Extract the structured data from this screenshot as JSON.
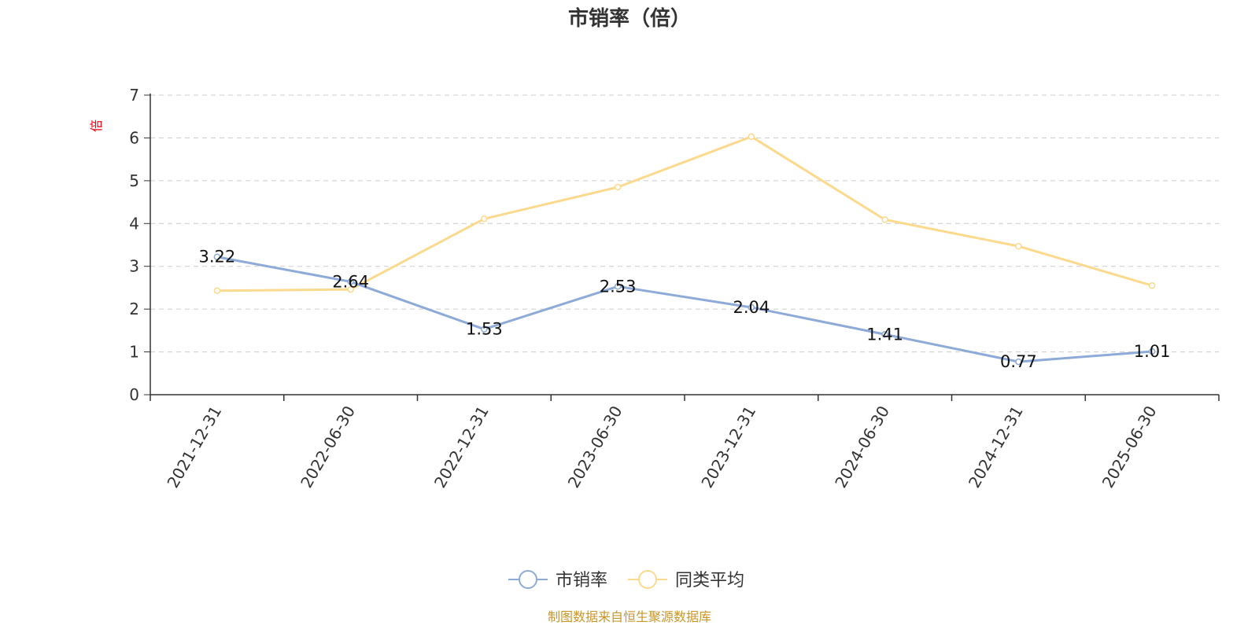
{
  "chart_data": {
    "type": "line",
    "title": "市销率（倍）",
    "ylabel": "倍",
    "xlabel": "",
    "categories": [
      "2021-12-31",
      "2022-06-30",
      "2022-12-31",
      "2023-06-30",
      "2023-12-31",
      "2024-06-30",
      "2024-12-31",
      "2025-06-30"
    ],
    "ylim": [
      0,
      7
    ],
    "yticks": [
      0,
      1,
      2,
      3,
      4,
      5,
      6,
      7
    ],
    "grid": true,
    "legend_position": "bottom-center",
    "series": [
      {
        "name": "市销率",
        "color": "#8eaad8",
        "values": [
          3.22,
          2.64,
          1.53,
          2.53,
          2.04,
          1.41,
          0.77,
          1.01
        ],
        "labels": [
          "3.22",
          "2.64",
          "1.53",
          "2.53",
          "2.04",
          "1.41",
          "0.77",
          "1.01"
        ],
        "show_labels": true
      },
      {
        "name": "同类平均",
        "color": "#fbd98d",
        "values": [
          2.43,
          2.46,
          4.11,
          4.85,
          6.03,
          4.09,
          3.47,
          2.55
        ],
        "show_labels": false
      }
    ]
  },
  "source_note": "制图数据来自恒生聚源数据库",
  "colors": {
    "axis": "#333333",
    "grid": "#cccccc",
    "ylabel": "#e8000b",
    "source": "#c8962a",
    "title": "#333333"
  }
}
